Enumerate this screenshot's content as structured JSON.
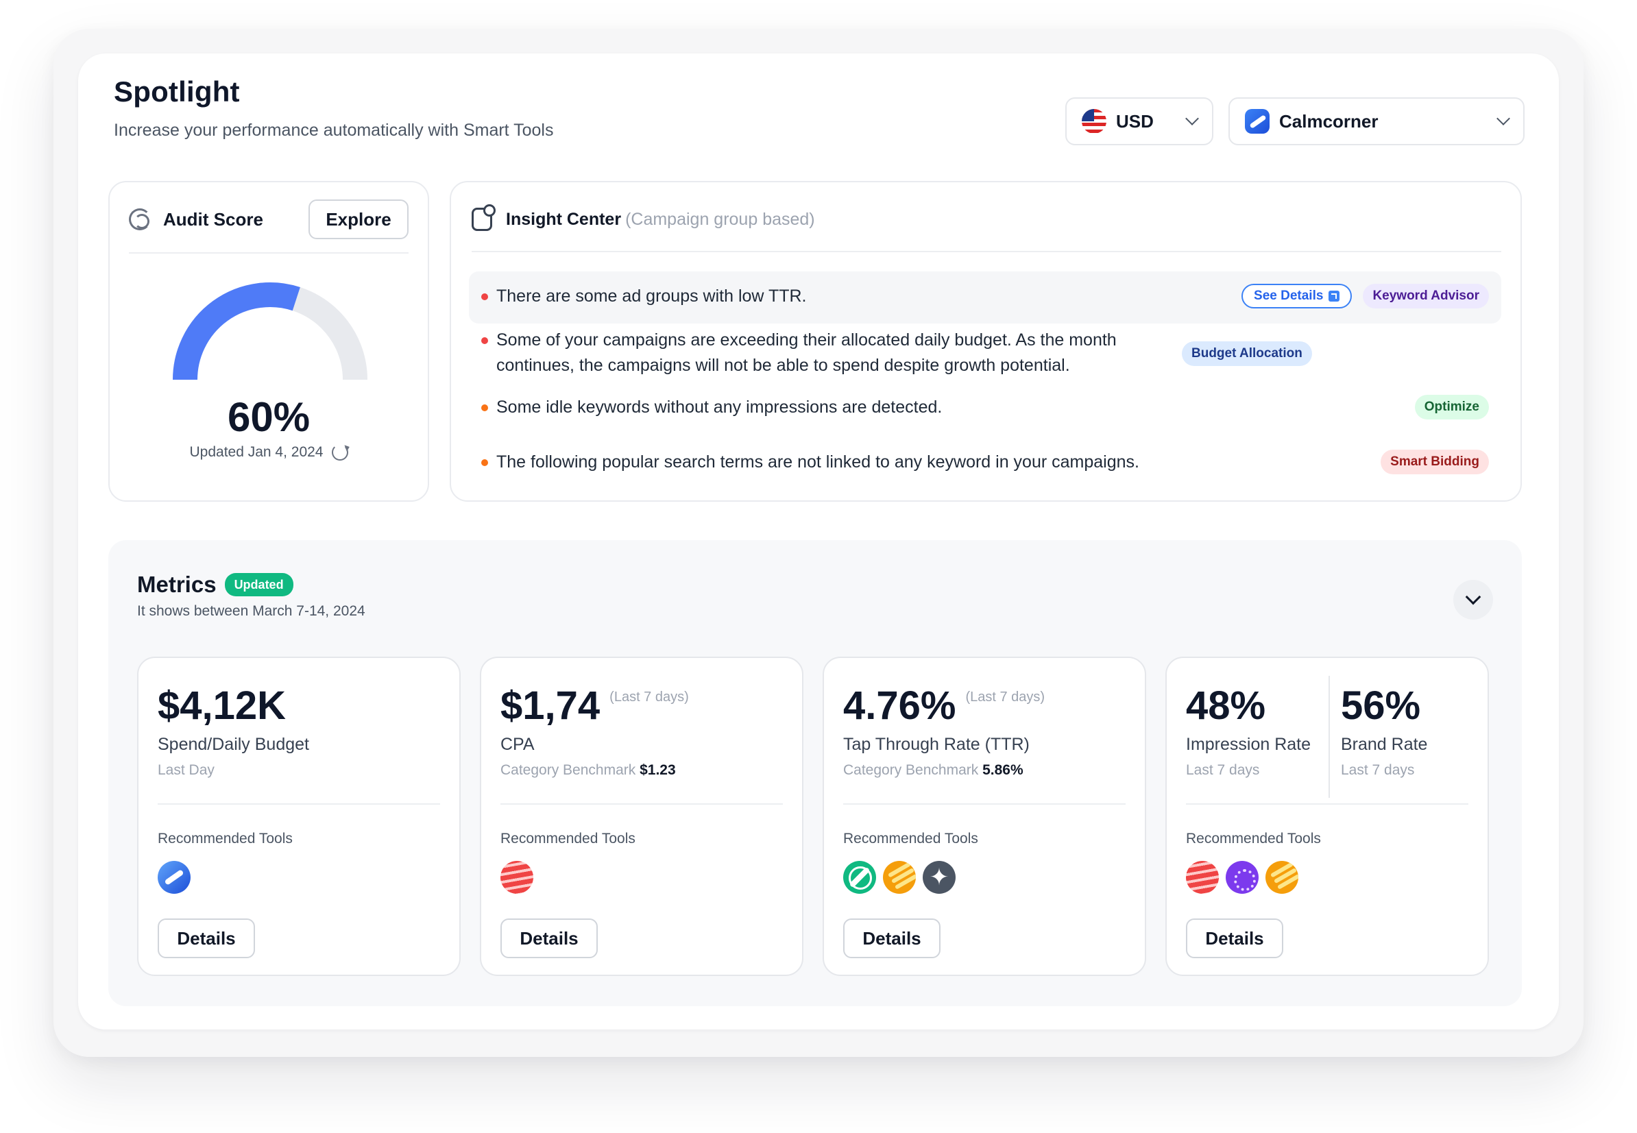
{
  "header": {
    "title": "Spotlight",
    "subtitle": "Increase your performance automatically with Smart Tools",
    "currency": {
      "value": "USD",
      "icon": "us-flag-icon"
    },
    "account": {
      "value": "Calmcorner",
      "icon": "calmcorner-logo-icon"
    }
  },
  "audit": {
    "title": "Audit Score",
    "explore_label": "Explore",
    "score": "60%",
    "score_fraction": 0.6,
    "updated": "Updated Jan 4, 2024",
    "colors": {
      "fill": "#4f7bf7",
      "track": "#e8eaee"
    }
  },
  "insight": {
    "title": "Insight Center",
    "subtitle": "(Campaign group based)",
    "see_details_label": "See Details",
    "items": [
      {
        "text": "There are some ad groups with low TTR.",
        "tag": "Keyword Advisor",
        "dot": "#ef4444",
        "tag_bg": "#ede9fe",
        "tag_fg": "#4c1d95"
      },
      {
        "text": "Some of your campaigns are exceeding their allocated daily budget. As the month continues, the campaigns will not be able to spend despite growth potential.",
        "tag": "Budget Allocation",
        "dot": "#ef4444",
        "tag_bg": "#dbeafe",
        "tag_fg": "#1e3a8a"
      },
      {
        "text": "Some idle keywords without any impressions are detected.",
        "tag": "Optimize",
        "dot": "#f97316",
        "tag_bg": "#dcfce7",
        "tag_fg": "#166534"
      },
      {
        "text": "The following popular search terms are not linked to any keyword in your campaigns.",
        "tag": "Smart Bidding",
        "dot": "#f97316",
        "tag_bg": "#fee2e2",
        "tag_fg": "#991b1b"
      }
    ]
  },
  "metrics": {
    "title": "Metrics",
    "badge": "Updated",
    "subtitle": "It shows between March 7-14, 2024",
    "recommended_label": "Recommended Tools",
    "details_label": "Details",
    "cards": [
      {
        "value": "$4,12K",
        "range": "",
        "label": "Spend/Daily Budget",
        "sub": "Last Day",
        "bench_label": "",
        "bench_value": "",
        "tools": [
          "blue"
        ]
      },
      {
        "value": "$1,74",
        "range": "(Last 7 days)",
        "label": "CPA",
        "sub": "",
        "bench_label": "Category Benchmark",
        "bench_value": "$1.23",
        "tools": [
          "red"
        ]
      },
      {
        "value": "4.76%",
        "range": "(Last 7 days)",
        "label": "Tap Through Rate (TTR)",
        "sub": "",
        "bench_label": "Category Benchmark",
        "bench_value": "5.86%",
        "tools": [
          "green",
          "orange",
          "gray"
        ]
      },
      {
        "value": "48%",
        "label": "Impression Rate",
        "sub": "Last 7 days",
        "value2": "56%",
        "label2": "Brand Rate",
        "sub2": "Last 7 days",
        "tools": [
          "red",
          "purple",
          "orange"
        ]
      }
    ]
  }
}
